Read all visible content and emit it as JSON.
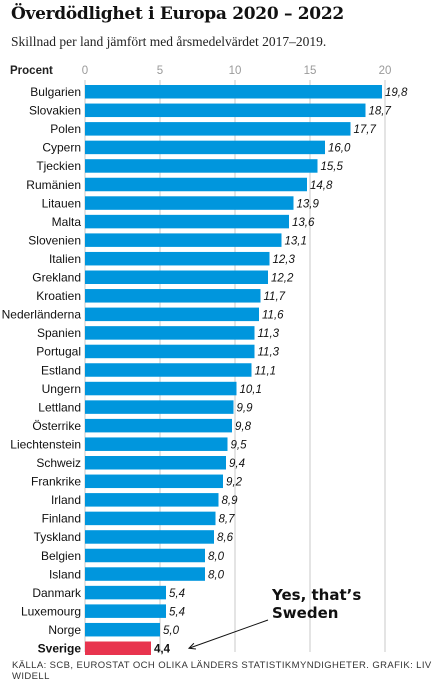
{
  "header": {
    "title": "Överdödlighet i Europa 2020 – 2022",
    "subtitle": "Skillnad per land jämfört med årsmedelvärdet 2017–2019."
  },
  "footer": {
    "source": "KÄLLA: SCB, EUROSTAT OCH OLIKA LÄNDERS STATISTIKMYNDIGHETER. GRAFIK: LIV WIDELL"
  },
  "colors": {
    "bar": "#0096DD",
    "highlight": "#E8344E",
    "grid": "#c8c8c8"
  },
  "chart_data": {
    "type": "bar",
    "orientation": "horizontal",
    "unit_label": "Procent",
    "xlim": [
      0,
      20
    ],
    "ticks": [
      "0",
      "5",
      "10",
      "15",
      "20"
    ],
    "grid": true,
    "categories": [
      "Bulgarien",
      "Slovakien",
      "Polen",
      "Cypern",
      "Tjeckien",
      "Rumänien",
      "Litauen",
      "Malta",
      "Slovenien",
      "Italien",
      "Grekland",
      "Kroatien",
      "Nederländerna",
      "Spanien",
      "Portugal",
      "Estland",
      "Ungern",
      "Lettland",
      "Österrike",
      "Liechtenstein",
      "Schweiz",
      "Frankrike",
      "Irland",
      "Finland",
      "Tyskland",
      "Belgien",
      "Island",
      "Danmark",
      "Luxemourg",
      "Norge",
      "Sverige"
    ],
    "values": [
      19.8,
      18.7,
      17.7,
      16.0,
      15.5,
      14.8,
      13.9,
      13.6,
      13.1,
      12.3,
      12.2,
      11.7,
      11.6,
      11.3,
      11.3,
      11.1,
      10.1,
      9.9,
      9.8,
      9.5,
      9.4,
      9.2,
      8.9,
      8.7,
      8.6,
      8.0,
      8.0,
      5.4,
      5.4,
      5.0,
      4.4
    ],
    "value_labels": [
      "19,8",
      "18,7",
      "17,7",
      "16,0",
      "15,5",
      "14,8",
      "13,9",
      "13,6",
      "13,1",
      "12,3",
      "12,2",
      "11,7",
      "11,6",
      "11,3",
      "11,3",
      "11,1",
      "10,1",
      "9,9",
      "9,8",
      "9,5",
      "9,4",
      "9,2",
      "8,9",
      "8,7",
      "8,6",
      "8,0",
      "8,0",
      "5,4",
      "5,4",
      "5,0",
      "4,4"
    ],
    "highlight": "Sverige",
    "annotation": {
      "lines": [
        "Yes, that’s",
        "Sweden"
      ],
      "target": "Sverige"
    }
  }
}
